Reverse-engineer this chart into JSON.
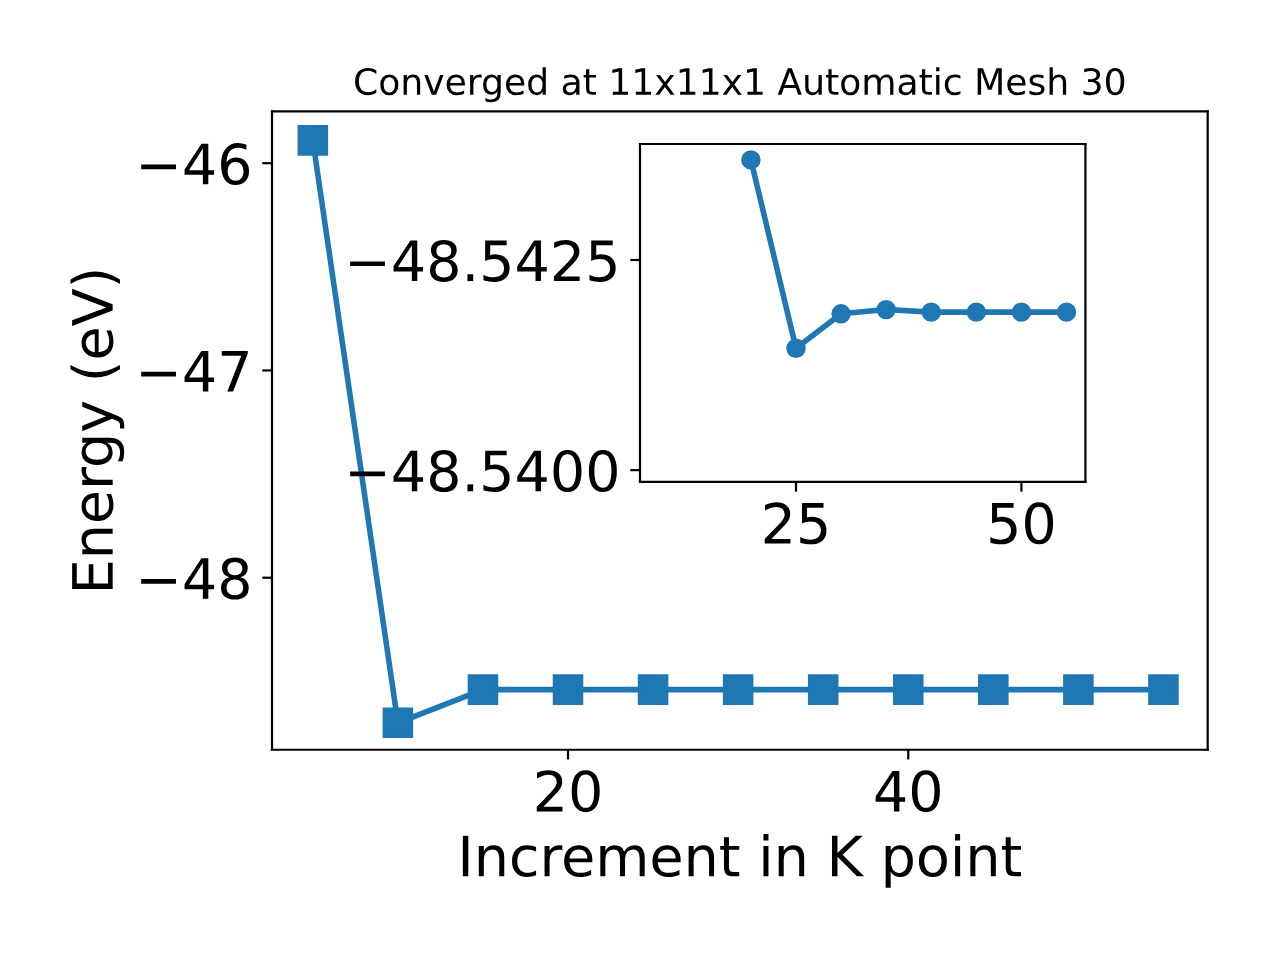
{
  "chart_data": [
    {
      "type": "line",
      "title": "Converged at 11x11x1 Automatic Mesh 30",
      "xlabel": "Increment in K point",
      "ylabel": "Energy (eV)",
      "x": [
        5,
        10,
        15,
        20,
        25,
        30,
        35,
        40,
        45,
        50,
        55
      ],
      "series": [
        {
          "color": "#1f77b4",
          "values": [
            -45.89,
            -48.7,
            -48.54,
            -48.54,
            -48.54,
            -48.54,
            -48.54,
            -48.54,
            -48.54,
            -48.54,
            -48.54
          ]
        }
      ],
      "marker": "square",
      "line_style": "solid",
      "grid": false,
      "legend": false,
      "xlim": [
        2.6,
        57.6
      ],
      "xticks": [
        20,
        40
      ],
      "ylim": [
        -48.83,
        -45.75
      ],
      "yticks": [
        {
          "value": -46,
          "label": "−46"
        },
        {
          "value": -47,
          "label": "−47"
        },
        {
          "value": -48,
          "label": "−48"
        }
      ]
    },
    {
      "type": "line",
      "x": [
        20,
        25,
        30,
        35,
        40,
        45,
        50,
        55
      ],
      "series": [
        {
          "color": "#1f77b4",
          "values": [
            -48.54369,
            -48.54145,
            -48.54186,
            -48.54191,
            -48.54188,
            -48.54188,
            -48.54188,
            -48.54188
          ]
        }
      ],
      "marker": "circle",
      "line_style": "solid",
      "grid": false,
      "legend": false,
      "xlim": [
        7.7,
        57.1
      ],
      "xticks": [
        25,
        50
      ],
      "ylim": [
        -48.53986,
        -48.54388
      ],
      "yticks": [
        {
          "value": -48.5425,
          "label": "−48.5425"
        },
        {
          "value": -48.54,
          "label": "−48.5400"
        }
      ]
    }
  ]
}
